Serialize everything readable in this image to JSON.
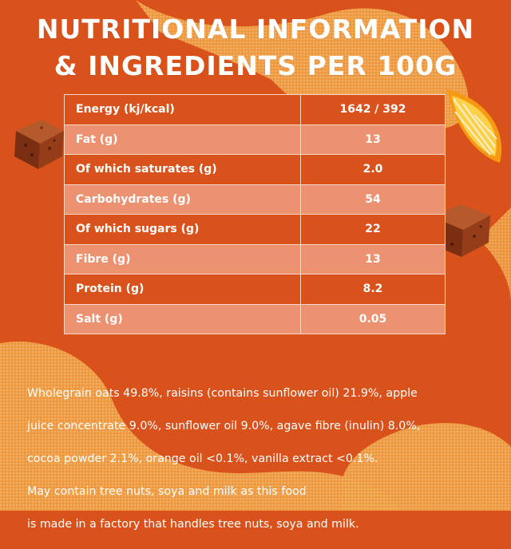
{
  "title": {
    "line1": "NUTRITIONAL INFORMATION",
    "line2": "& INGREDIENTS PER 100G"
  },
  "nutrition": [
    {
      "label": "Energy (kj/kcal)",
      "value": "1642 / 392"
    },
    {
      "label": "Fat (g)",
      "value": "13"
    },
    {
      "label": "Of which saturates (g)",
      "value": "2.0"
    },
    {
      "label": "Carbohydrates (g)",
      "value": "54"
    },
    {
      "label": "Of which sugars (g)",
      "value": "22"
    },
    {
      "label": "Fibre (g)",
      "value": "13"
    },
    {
      "label": "Protein (g)",
      "value": "8.2"
    },
    {
      "label": "Salt (g)",
      "value": "0.05"
    }
  ],
  "ingredients": {
    "line1": "Wholegrain oats 49.8%, raisins (contains sunflower oil) 21.9%, apple",
    "line2": "juice concentrate 9.0%, sunflower oil 9.0%, agave fibre (inulin) 8.0%,",
    "line3": "cocoa powder 2.1%, orange oil <0.1%, vanilla extract <0.1%.",
    "line4": "May contain tree nuts, soya and milk as this food",
    "line5": "is made in a factory that handles tree nuts, soya and milk."
  },
  "colors": {
    "background": "#d9521c",
    "row_light": "#ec9270",
    "swirl": "#f3a24a",
    "text": "#ffffff"
  },
  "icons": [
    "brownie-cube-icon",
    "orange-slice-icon",
    "brownie-cube-icon"
  ]
}
